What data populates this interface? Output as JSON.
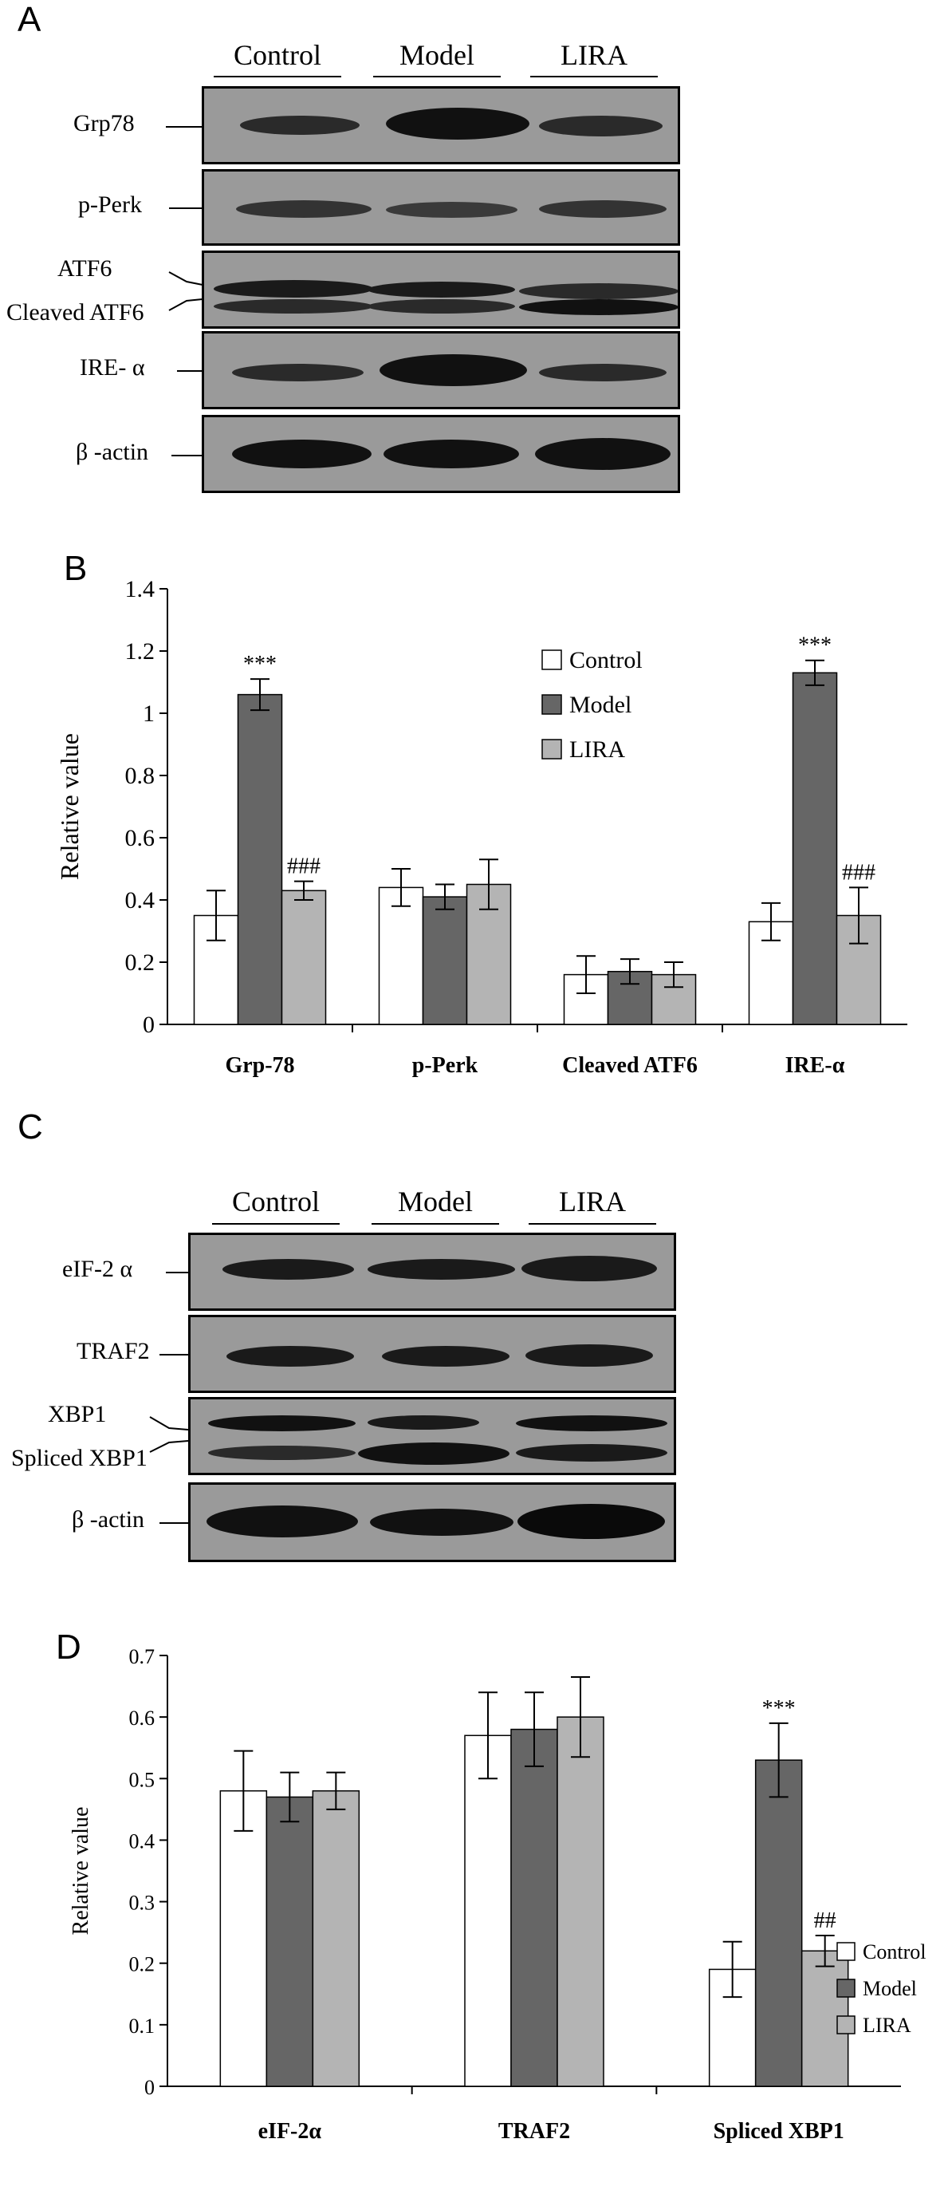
{
  "panels": {
    "a": {
      "letter": "A",
      "groups": [
        "Control",
        "Model",
        "LIRA"
      ],
      "rows": [
        "Grp78",
        "p-Perk",
        "ATF6",
        "Cleaved ATF6",
        "IRE- α",
        "β -actin"
      ]
    },
    "b": {
      "letter": "B"
    },
    "c": {
      "letter": "C",
      "groups": [
        "Control",
        "Model",
        "LIRA"
      ],
      "rows": [
        "eIF-2 α",
        "TRAF2",
        "XBP1",
        "Spliced XBP1",
        "β -actin"
      ]
    },
    "d": {
      "letter": "D"
    }
  },
  "colors": {
    "control": "#ffffff",
    "model": "#666666",
    "lira": "#b4b4b4",
    "blot_bg": "#9a9a9a",
    "band": "#1a1a1a"
  },
  "chart_data": [
    {
      "type": "bar",
      "title": "",
      "xlabel": "",
      "ylabel": "Relative value",
      "ylim": [
        0,
        1.4
      ],
      "yticks": [
        "0",
        "0.2",
        "0.4",
        "0.6",
        "0.8",
        "1",
        "1.2",
        "1.4"
      ],
      "categories": [
        "Grp-78",
        "p-Perk",
        "Cleaved ATF6",
        "IRE-α"
      ],
      "series": [
        {
          "name": "Control",
          "values": [
            0.35,
            0.44,
            0.16,
            0.33
          ],
          "errors": [
            0.08,
            0.06,
            0.06,
            0.06
          ]
        },
        {
          "name": "Model",
          "values": [
            1.06,
            0.41,
            0.17,
            1.13
          ],
          "errors": [
            0.05,
            0.04,
            0.04,
            0.04
          ]
        },
        {
          "name": "LIRA",
          "values": [
            0.43,
            0.45,
            0.16,
            0.35
          ],
          "errors": [
            0.03,
            0.08,
            0.04,
            0.09
          ]
        }
      ],
      "annotations": [
        {
          "text": "***",
          "category": 0,
          "series": 1
        },
        {
          "text": "###",
          "category": 0,
          "series": 2
        },
        {
          "text": "***",
          "category": 3,
          "series": 1
        },
        {
          "text": "###",
          "category": 3,
          "series": 2
        }
      ],
      "legend": "top-right",
      "grid": false
    },
    {
      "type": "bar",
      "title": "",
      "xlabel": "",
      "ylabel": "Relative value",
      "ylim": [
        0,
        0.7
      ],
      "yticks": [
        "0",
        "0.1",
        "0.2",
        "0.3",
        "0.4",
        "0.5",
        "0.6",
        "0.7"
      ],
      "categories": [
        "eIF-2α",
        "TRAF2",
        "Spliced XBP1"
      ],
      "series": [
        {
          "name": "Control",
          "values": [
            0.48,
            0.57,
            0.19
          ],
          "errors": [
            0.065,
            0.07,
            0.045
          ]
        },
        {
          "name": "Model",
          "values": [
            0.47,
            0.58,
            0.53
          ],
          "errors": [
            0.04,
            0.06,
            0.06
          ]
        },
        {
          "name": "LIRA",
          "values": [
            0.48,
            0.6,
            0.22
          ],
          "errors": [
            0.03,
            0.065,
            0.025
          ]
        }
      ],
      "annotations": [
        {
          "text": "***",
          "category": 2,
          "series": 1
        },
        {
          "text": "##",
          "category": 2,
          "series": 2
        }
      ],
      "legend": "bottom-right",
      "grid": false
    }
  ]
}
